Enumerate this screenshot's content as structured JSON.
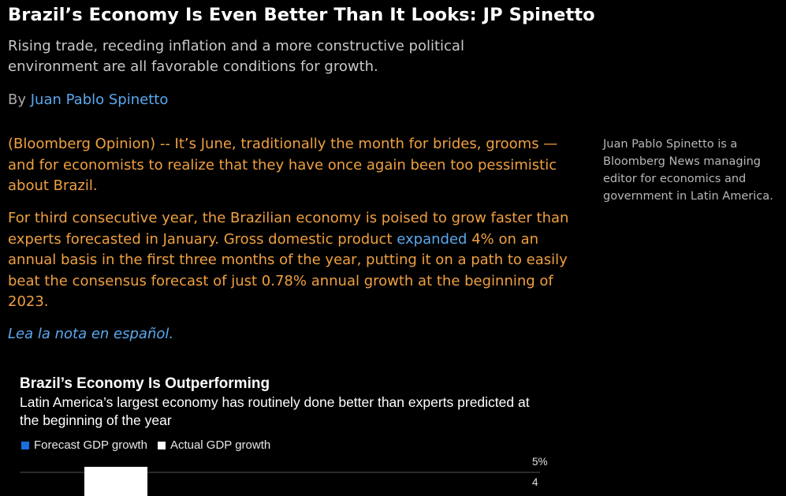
{
  "article": {
    "headline": "Brazil’s Economy Is Even Better Than It Looks: JP Spinetto",
    "dek": "Rising trade, receding inflation and a more constructive political environment are all favorable conditions for growth.",
    "byline_prefix": "By",
    "author": "Juan Pablo Spinetto",
    "paragraph1": "(Bloomberg Opinion) -- It’s June, traditionally the month for brides, grooms — and for economists to realize that they have once again been too pessimistic about Brazil.",
    "paragraph2_before_link": "For third consecutive year, the Brazilian economy is poised to grow faster than experts forecasted in January. Gross domestic product",
    "paragraph2_link": "expanded",
    "paragraph2_after_link": "4% on an annual basis in the first three months of the year, putting it on a path to easily beat the consensus forecast of just 0.78% annual growth at the beginning of 2023.",
    "spanish_link": "Lea la nota en español.",
    "author_bio": "Juan Pablo Spinetto is a Bloomberg News managing editor for economics and government in Latin America."
  },
  "colors": {
    "forecast": "#1a6fe0",
    "actual": "#ffffff",
    "gridline": "#555555"
  },
  "chart_data": {
    "type": "bar",
    "title": "Brazil’s Economy Is Outperforming",
    "subtitle": "Latin America’s largest economy has routinely done better than experts predicted at the beginning of the year",
    "legend": [
      "Forecast GDP growth",
      "Actual GDP growth"
    ],
    "y_tick_labels": [
      "5%",
      "4"
    ],
    "y_ticks": [
      5,
      4
    ],
    "ylim": [
      0,
      5
    ],
    "series": [
      {
        "name": "Forecast GDP growth",
        "values": []
      },
      {
        "name": "Actual GDP growth",
        "values": [
          5
        ]
      }
    ]
  }
}
